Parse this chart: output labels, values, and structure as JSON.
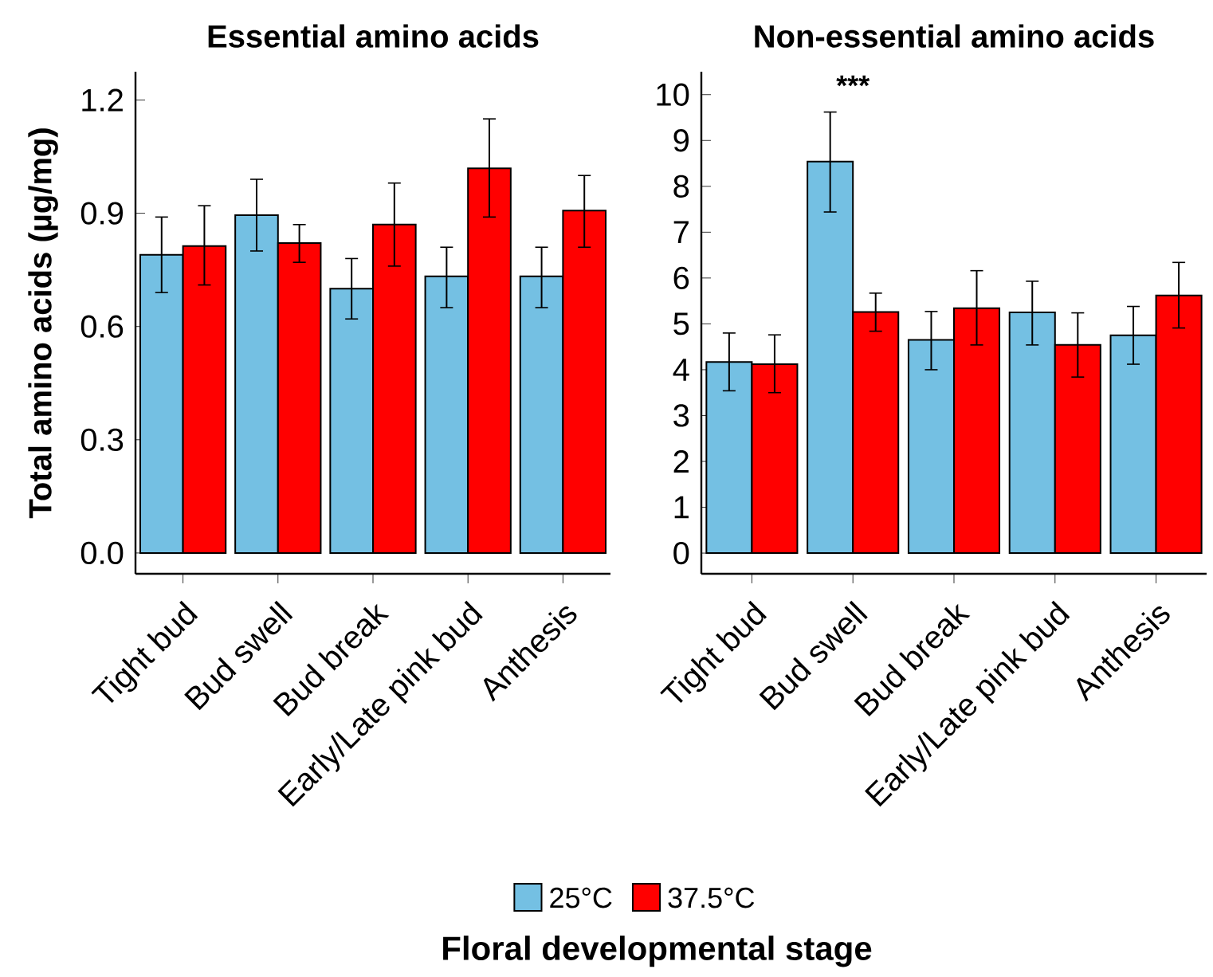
{
  "chart_data": [
    {
      "type": "bar",
      "title": "Essential amino acids",
      "ylabel": "Total amino acids (µg/mg)",
      "xlabel": "Floral developmental stage",
      "categories": [
        "Tight bud",
        "Bud swell",
        "Bud break",
        "Early/Late pink bud",
        "Anthesis"
      ],
      "series": [
        {
          "name": "25°C",
          "color": "#74c0e3",
          "values": [
            0.79,
            0.895,
            0.7,
            0.733,
            0.733
          ],
          "errors": [
            [
              0.69,
              0.89
            ],
            [
              0.8,
              0.99
            ],
            [
              0.62,
              0.78
            ],
            [
              0.65,
              0.81
            ],
            [
              0.65,
              0.81
            ]
          ]
        },
        {
          "name": "37.5°C",
          "color": "#ff0000",
          "values": [
            0.813,
            0.821,
            0.87,
            1.019,
            0.907
          ],
          "errors": [
            [
              0.71,
              0.92
            ],
            [
              0.77,
              0.87
            ],
            [
              0.76,
              0.98
            ],
            [
              0.89,
              1.15
            ],
            [
              0.81,
              1.0
            ]
          ]
        }
      ],
      "ylim": [
        -0.055,
        1.275
      ],
      "yticks": [
        {
          "value": 0,
          "label": "0.0"
        },
        0.3,
        0.6,
        0.9,
        1.2
      ],
      "legend": "bottom"
    },
    {
      "type": "bar",
      "title": "Non-essential amino acids",
      "categories": [
        "Tight bud",
        "Bud swell",
        "Bud break",
        "Early/Late pink bud",
        "Anthesis"
      ],
      "series": [
        {
          "color": "#74c0e3",
          "values": [
            4.17,
            8.54,
            4.65,
            5.25,
            4.75
          ],
          "errors": [
            [
              3.54,
              4.8
            ],
            [
              7.44,
              9.62
            ],
            [
              4.0,
              5.27
            ],
            [
              4.54,
              5.93
            ],
            [
              4.12,
              5.38
            ]
          ]
        },
        {
          "color": "#ff0000",
          "values": [
            4.12,
            5.26,
            5.34,
            4.54,
            5.62
          ],
          "errors": [
            [
              3.5,
              4.76
            ],
            [
              4.84,
              5.67
            ],
            [
              4.54,
              6.16
            ],
            [
              3.84,
              5.24
            ],
            [
              4.91,
              6.34
            ]
          ]
        }
      ],
      "ylim": [
        -0.45,
        10.5
      ],
      "yticks": [
        0,
        1,
        2,
        3,
        4,
        5,
        6,
        7,
        8,
        9,
        10
      ],
      "annotations": [
        "***"
      ]
    }
  ]
}
